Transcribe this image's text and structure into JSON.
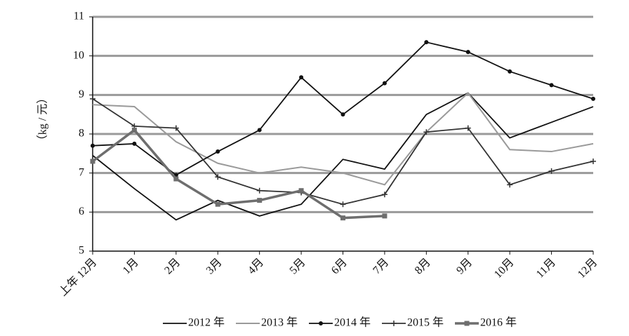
{
  "chart_data": {
    "type": "line",
    "ylabel": "（kg / 元）",
    "categories": [
      "上年 12月",
      "1月",
      "2月",
      "3月",
      "4月",
      "5月",
      "6月",
      "7月",
      "8月",
      "9月",
      "10月",
      "11月",
      "12月"
    ],
    "series": [
      {
        "name": "2012 年",
        "color": "#111111",
        "marker": "none",
        "values": [
          7.45,
          6.6,
          5.8,
          6.3,
          5.9,
          6.2,
          7.35,
          7.1,
          8.5,
          9.05,
          7.9,
          8.3,
          8.7
        ]
      },
      {
        "name": "2013 年",
        "color": "#9a9a9a",
        "marker": "none",
        "values": [
          8.75,
          8.7,
          7.8,
          7.25,
          7.0,
          7.15,
          7.0,
          6.7,
          8.05,
          9.05,
          7.6,
          7.55,
          7.75
        ]
      },
      {
        "name": "2014 年",
        "color": "#111111",
        "marker": "circle",
        "values": [
          7.7,
          7.75,
          6.95,
          7.55,
          8.1,
          9.45,
          8.5,
          9.3,
          10.35,
          10.1,
          9.6,
          9.25,
          8.9
        ]
      },
      {
        "name": "2015 年",
        "color": "#333333",
        "marker": "cross",
        "values": [
          8.9,
          8.2,
          8.15,
          6.9,
          6.55,
          6.5,
          6.2,
          6.45,
          8.05,
          8.15,
          6.7,
          7.05,
          7.3
        ]
      },
      {
        "name": "2016 年",
        "color": "#6e6e6e",
        "marker": "square",
        "values": [
          7.3,
          8.1,
          6.85,
          6.2,
          6.3,
          6.55,
          5.85,
          5.9,
          null,
          null,
          null,
          null,
          null
        ]
      }
    ],
    "ylim": [
      5,
      11
    ],
    "yticks": [
      5,
      6,
      7,
      8,
      9,
      10,
      11
    ],
    "grid": true,
    "legend": "bottom"
  }
}
